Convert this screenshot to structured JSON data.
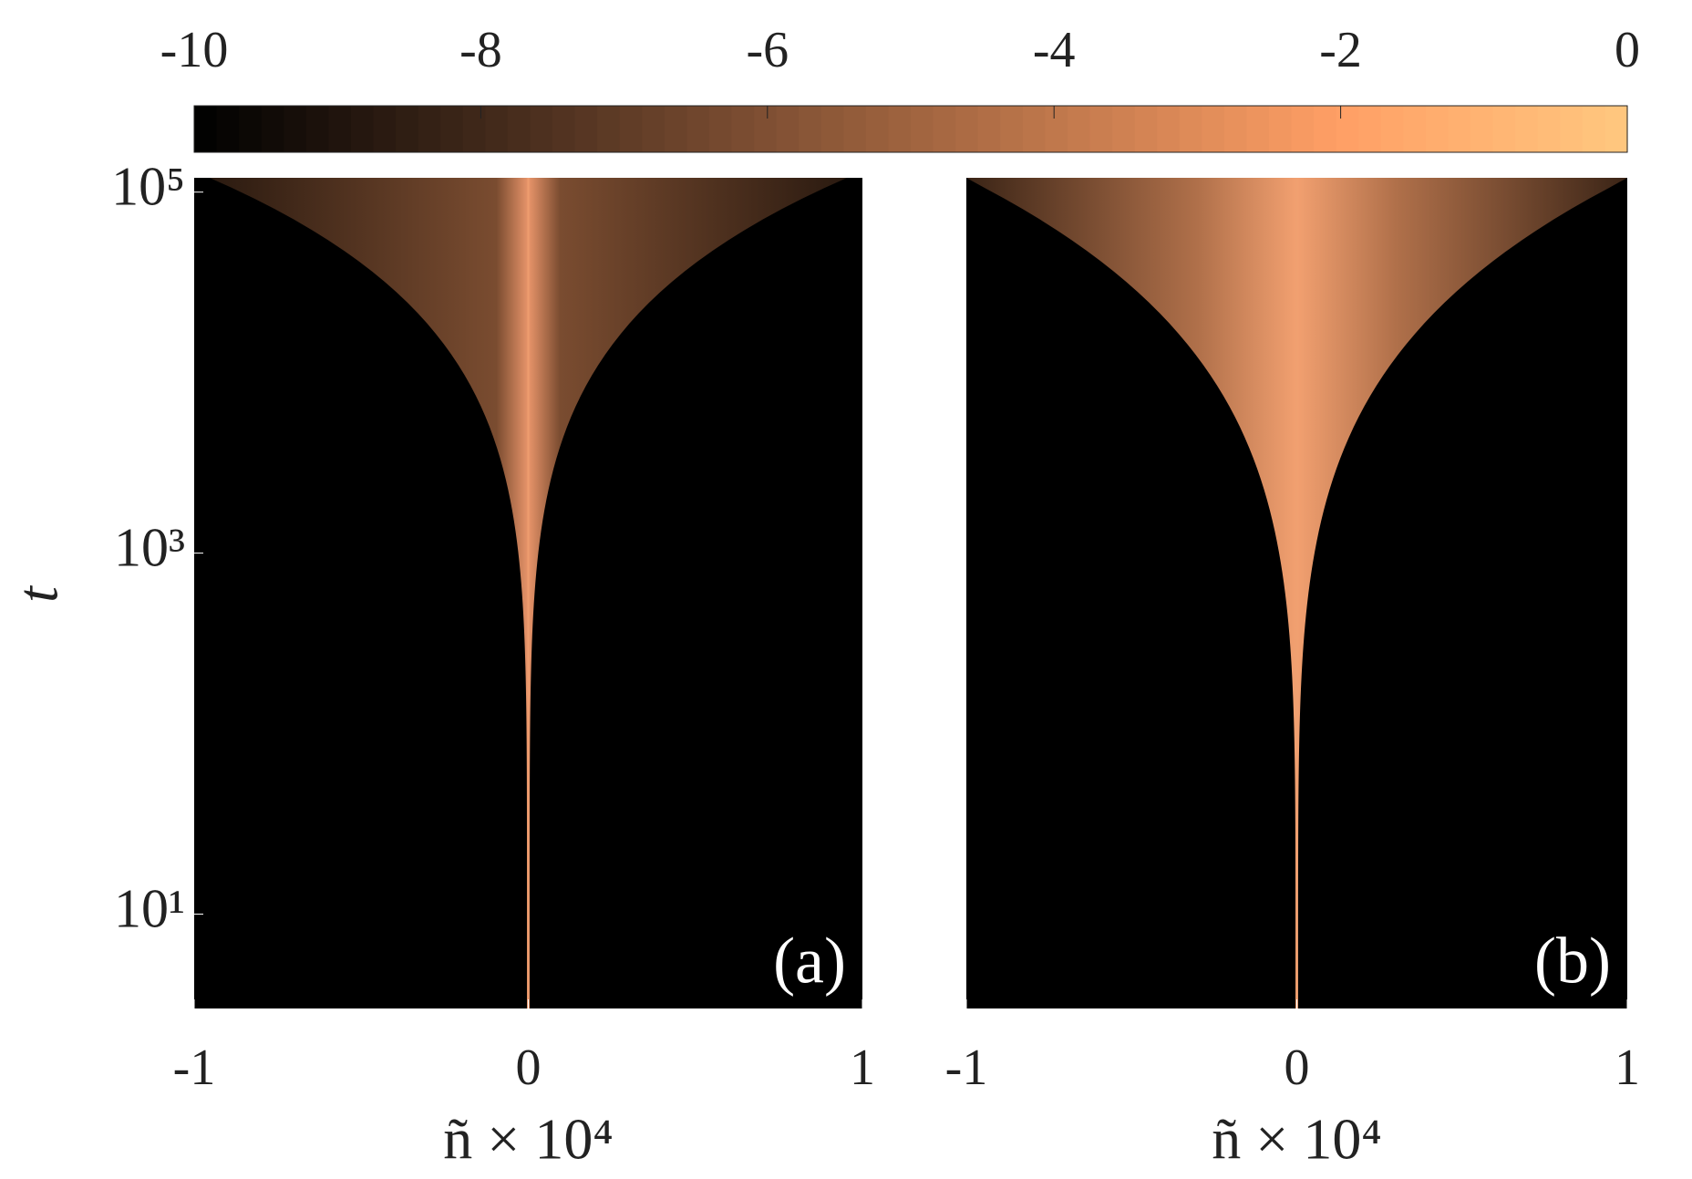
{
  "chart_data": [
    {
      "type": "heatmap",
      "panel_label": "(a)",
      "ylabel": "t",
      "xlabel": "ñ × 10⁴",
      "xlim": [
        -1,
        1
      ],
      "xticks": [
        -1,
        0,
        1
      ],
      "ylim": [
        3,
        120000
      ],
      "yscale": "log",
      "yticks": [
        {
          "value": 10,
          "label": "10¹"
        },
        {
          "value": 1000,
          "label": "10³"
        },
        {
          "value": 100000,
          "label": "10⁵"
        }
      ],
      "colormap": "copper",
      "clim": [
        -10,
        0
      ],
      "cticks": [
        -10,
        -8,
        -6,
        -4,
        -2,
        0
      ]
    },
    {
      "type": "heatmap",
      "panel_label": "(b)",
      "xlabel": "ñ × 10⁴",
      "xlim": [
        -1,
        1
      ],
      "xticks": [
        -1,
        0,
        1
      ],
      "ylim": [
        3,
        120000
      ],
      "yscale": "log",
      "colormap": "copper"
    }
  ]
}
